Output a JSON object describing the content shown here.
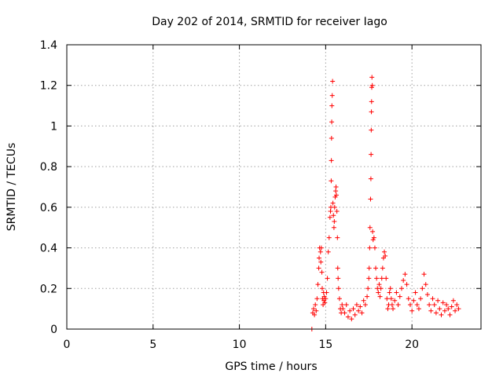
{
  "chart_data": {
    "type": "scatter",
    "title": "Day 202 of 2014, SRMTID for receiver Iago",
    "xlabel": "GPS time / hours",
    "ylabel": "SRMTID / TECUs",
    "xlim": [
      0,
      24
    ],
    "ylim": [
      0,
      1.4
    ],
    "xticks": [
      0,
      5,
      10,
      15,
      20
    ],
    "yticks": [
      0,
      0.2,
      0.4,
      0.6,
      0.8,
      1,
      1.2,
      1.4
    ],
    "ytick_labels": [
      "0",
      "0.2",
      "0.4",
      "0.6",
      "0.8",
      "1",
      "1.2",
      "1.4"
    ],
    "grid": true,
    "marker": "+",
    "series_color": "#ff0000",
    "series": [
      {
        "name": "SRMTID",
        "x": [
          14.2,
          14.25,
          14.3,
          14.35,
          14.4,
          14.45,
          14.5,
          14.55,
          14.6,
          14.62,
          14.65,
          14.7,
          14.72,
          14.75,
          14.78,
          14.8,
          14.82,
          14.85,
          14.88,
          14.9,
          14.92,
          14.95,
          15.0,
          15.05,
          15.1,
          15.15,
          15.2,
          15.25,
          15.28,
          15.3,
          15.32,
          15.33,
          15.34,
          15.35,
          15.36,
          15.38,
          15.4,
          15.42,
          15.45,
          15.48,
          15.5,
          15.52,
          15.55,
          15.58,
          15.6,
          15.62,
          15.65,
          15.68,
          15.7,
          15.72,
          15.75,
          15.8,
          15.85,
          15.9,
          15.95,
          16.0,
          16.1,
          16.2,
          16.3,
          16.4,
          16.5,
          16.6,
          16.7,
          16.8,
          16.9,
          17.0,
          17.1,
          17.2,
          17.3,
          17.4,
          17.45,
          17.5,
          17.52,
          17.55,
          17.57,
          17.6,
          17.62,
          17.63,
          17.64,
          17.65,
          17.66,
          17.67,
          17.68,
          17.7,
          17.72,
          17.75,
          17.8,
          17.85,
          17.9,
          17.95,
          18.0,
          18.05,
          18.1,
          18.15,
          18.2,
          18.25,
          18.3,
          18.35,
          18.4,
          18.45,
          18.5,
          18.55,
          18.6,
          18.65,
          18.7,
          18.75,
          18.8,
          18.85,
          18.9,
          19.0,
          19.1,
          19.2,
          19.3,
          19.4,
          19.5,
          19.6,
          19.7,
          19.8,
          19.9,
          20.0,
          20.1,
          20.2,
          20.3,
          20.4,
          20.5,
          20.6,
          20.7,
          20.8,
          20.9,
          21.0,
          21.1,
          21.2,
          21.3,
          21.4,
          21.5,
          21.6,
          21.7,
          21.8,
          21.9,
          22.0,
          22.1,
          22.2,
          22.3,
          22.4,
          22.5,
          22.6,
          22.7
        ],
        "y": [
          0.0,
          0.08,
          0.1,
          0.07,
          0.12,
          0.09,
          0.15,
          0.22,
          0.3,
          0.35,
          0.4,
          0.38,
          0.33,
          0.4,
          0.28,
          0.2,
          0.15,
          0.12,
          0.18,
          0.14,
          0.16,
          0.13,
          0.15,
          0.18,
          0.25,
          0.38,
          0.45,
          0.55,
          0.58,
          0.6,
          0.73,
          0.83,
          0.94,
          1.02,
          1.1,
          1.15,
          1.22,
          0.62,
          0.56,
          0.5,
          0.53,
          0.6,
          0.65,
          0.68,
          0.7,
          0.66,
          0.58,
          0.45,
          0.3,
          0.25,
          0.2,
          0.15,
          0.1,
          0.08,
          0.12,
          0.1,
          0.08,
          0.12,
          0.06,
          0.09,
          0.05,
          0.1,
          0.07,
          0.12,
          0.09,
          0.11,
          0.08,
          0.14,
          0.12,
          0.16,
          0.2,
          0.25,
          0.3,
          0.4,
          0.5,
          0.64,
          0.74,
          0.86,
          0.98,
          1.07,
          1.12,
          1.19,
          1.24,
          1.2,
          0.48,
          0.44,
          0.45,
          0.4,
          0.3,
          0.25,
          0.2,
          0.18,
          0.22,
          0.16,
          0.2,
          0.25,
          0.3,
          0.35,
          0.38,
          0.36,
          0.25,
          0.15,
          0.1,
          0.12,
          0.18,
          0.2,
          0.15,
          0.12,
          0.1,
          0.14,
          0.18,
          0.12,
          0.16,
          0.2,
          0.24,
          0.27,
          0.22,
          0.15,
          0.12,
          0.09,
          0.14,
          0.18,
          0.12,
          0.1,
          0.15,
          0.2,
          0.27,
          0.22,
          0.17,
          0.12,
          0.09,
          0.15,
          0.12,
          0.08,
          0.14,
          0.1,
          0.07,
          0.13,
          0.09,
          0.12,
          0.1,
          0.07,
          0.11,
          0.14,
          0.09,
          0.12,
          0.1
        ]
      }
    ]
  }
}
